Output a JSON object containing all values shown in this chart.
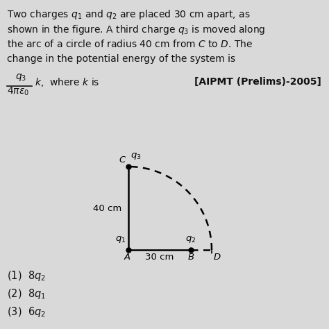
{
  "bg_color": "#d9d9d9",
  "text_color": "#111111",
  "title_lines": [
    "Two charges $q_1$ and $q_2$ are placed 30 cm apart, as",
    "shown in the figure. A third charge $q_3$ is moved along",
    "the arc of a circle of radius 40 cm from $C$ to $D$. The",
    "change in the potential energy of the system is"
  ],
  "tag": "[AIPMT (Prelims)-2005]",
  "options": [
    "(1)  $8q_2$",
    "(2)  $8q_1$",
    "(3)  $6q_2$"
  ],
  "fig_width": 4.74,
  "fig_height": 4.74,
  "dpi": 100,
  "title_fontsize": 10.0,
  "formula_fontsize": 10.0,
  "option_fontsize": 10.5,
  "diag_fontsize": 9.5
}
